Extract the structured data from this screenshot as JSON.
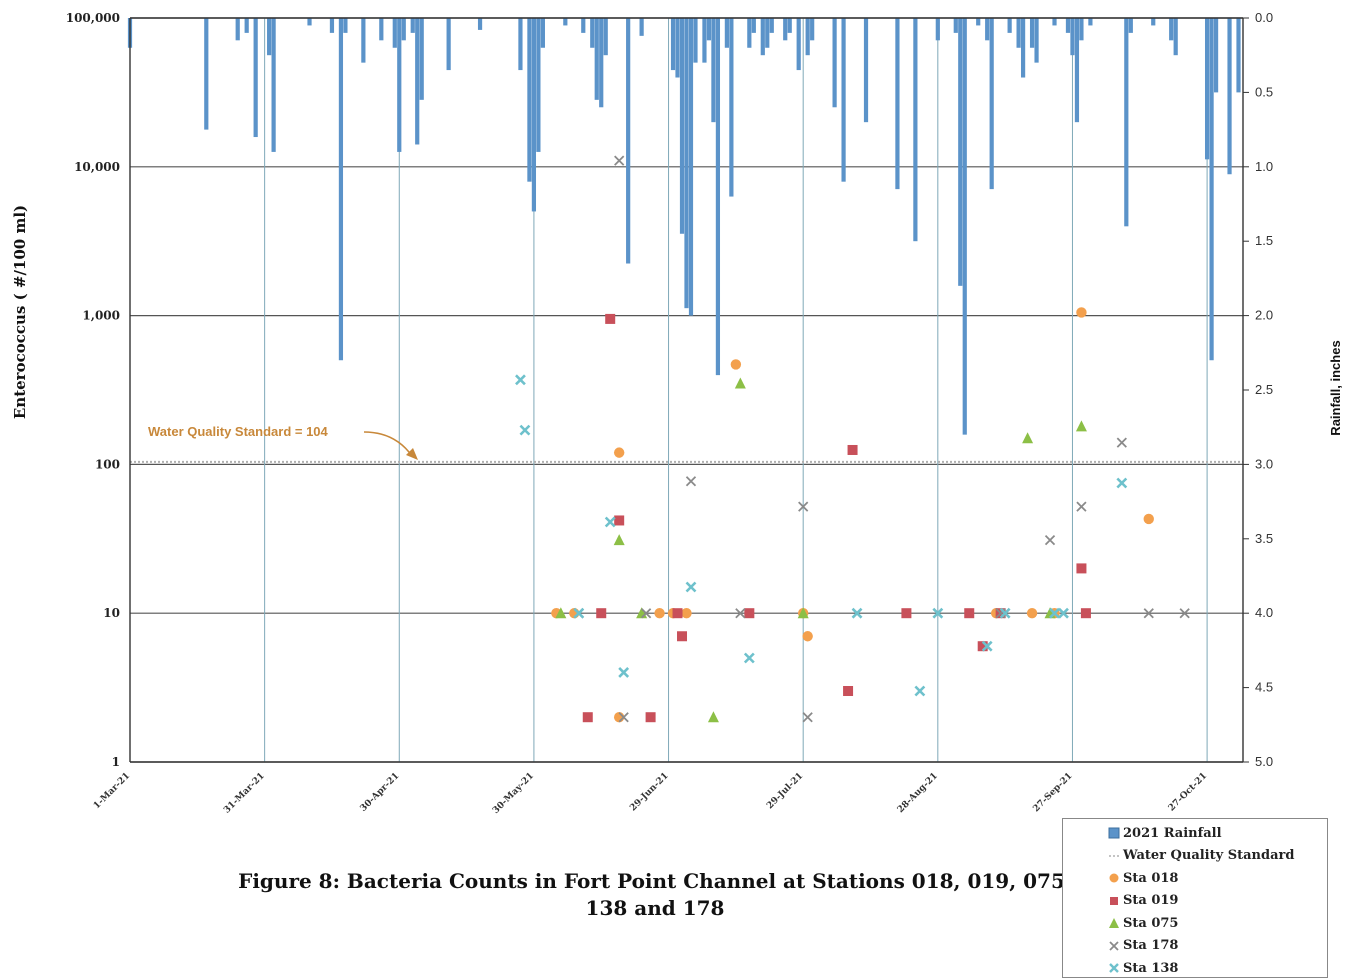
{
  "figure": {
    "caption_line1": "Figure 8:  Bacteria Counts in Fort Point Channel at Stations 018, 019, 075,",
    "caption_line2": "138 and 178"
  },
  "colors": {
    "rainfall": "#5b93c9",
    "wqs": "#b0b0b0",
    "sta018": "#f3a04d",
    "sta019": "#c8505a",
    "sta075": "#8cbf46",
    "sta178": "#8a8a8a",
    "sta138": "#6ec1cc",
    "annotation": "#c8883a"
  },
  "chart_data": {
    "type": "scatter",
    "title": "",
    "ylabel": "Enterococcus ( #/100 ml)",
    "y2label": "Rainfall, inches",
    "y_scale": "log",
    "ylim": [
      1,
      100000
    ],
    "y2lim": [
      5.0,
      0.0
    ],
    "y2_inverted": true,
    "xlim": [
      "2021-03-01",
      "2021-11-04"
    ],
    "y_ticks": [
      {
        "value": 1,
        "label": "1"
      },
      {
        "value": 10,
        "label": "10"
      },
      {
        "value": 100,
        "label": "100"
      },
      {
        "value": 1000,
        "label": "1,000"
      },
      {
        "value": 10000,
        "label": "10,000"
      },
      {
        "value": 100000,
        "label": "100,000"
      }
    ],
    "y2_ticks": [
      "0.0",
      "0.5",
      "1.0",
      "1.5",
      "2.0",
      "2.5",
      "3.0",
      "3.5",
      "4.0",
      "4.5",
      "5.0"
    ],
    "x_ticks": [
      {
        "date": "2021-03-01",
        "label": "1-Mar-21"
      },
      {
        "date": "2021-03-31",
        "label": "31-Mar-21"
      },
      {
        "date": "2021-04-30",
        "label": "30-Apr-21"
      },
      {
        "date": "2021-05-30",
        "label": "30-May-21"
      },
      {
        "date": "2021-06-29",
        "label": "29-Jun-21"
      },
      {
        "date": "2021-07-29",
        "label": "29-Jul-21"
      },
      {
        "date": "2021-08-28",
        "label": "28-Aug-21"
      },
      {
        "date": "2021-09-27",
        "label": "27-Sep-21"
      },
      {
        "date": "2021-10-27",
        "label": "27-Oct-21"
      }
    ],
    "grid": true,
    "legend_position": "bottom-right",
    "annotation": {
      "text": "Water Quality Standard = 104",
      "value": 104
    },
    "water_quality_standard": {
      "name": "Water Quality Standard",
      "value": 104
    },
    "rainfall": {
      "name": "2021 Rainfall",
      "unit": "inches",
      "points": [
        [
          "2021-03-01",
          0.2
        ],
        [
          "2021-03-18",
          0.75
        ],
        [
          "2021-03-25",
          0.15
        ],
        [
          "2021-03-27",
          0.1
        ],
        [
          "2021-03-29",
          0.8
        ],
        [
          "2021-04-01",
          0.25
        ],
        [
          "2021-04-02",
          0.9
        ],
        [
          "2021-04-10",
          0.05
        ],
        [
          "2021-04-15",
          0.1
        ],
        [
          "2021-04-17",
          2.3
        ],
        [
          "2021-04-18",
          0.1
        ],
        [
          "2021-04-22",
          0.3
        ],
        [
          "2021-04-26",
          0.15
        ],
        [
          "2021-04-29",
          0.2
        ],
        [
          "2021-04-30",
          0.9
        ],
        [
          "2021-05-01",
          0.15
        ],
        [
          "2021-05-03",
          0.1
        ],
        [
          "2021-05-04",
          0.85
        ],
        [
          "2021-05-05",
          0.55
        ],
        [
          "2021-05-11",
          0.35
        ],
        [
          "2021-05-18",
          0.08
        ],
        [
          "2021-05-27",
          0.35
        ],
        [
          "2021-05-29",
          1.1
        ],
        [
          "2021-05-30",
          1.3
        ],
        [
          "2021-05-31",
          0.9
        ],
        [
          "2021-06-01",
          0.2
        ],
        [
          "2021-06-06",
          0.05
        ],
        [
          "2021-06-10",
          0.1
        ],
        [
          "2021-06-12",
          0.2
        ],
        [
          "2021-06-13",
          0.55
        ],
        [
          "2021-06-14",
          0.6
        ],
        [
          "2021-06-15",
          0.25
        ],
        [
          "2021-06-20",
          1.65
        ],
        [
          "2021-06-23",
          0.12
        ],
        [
          "2021-06-30",
          0.35
        ],
        [
          "2021-07-01",
          0.4
        ],
        [
          "2021-07-02",
          1.45
        ],
        [
          "2021-07-03",
          1.95
        ],
        [
          "2021-07-04",
          2.0
        ],
        [
          "2021-07-05",
          0.3
        ],
        [
          "2021-07-07",
          0.3
        ],
        [
          "2021-07-08",
          0.15
        ],
        [
          "2021-07-09",
          0.7
        ],
        [
          "2021-07-10",
          2.4
        ],
        [
          "2021-07-12",
          0.2
        ],
        [
          "2021-07-13",
          1.2
        ],
        [
          "2021-07-17",
          0.2
        ],
        [
          "2021-07-18",
          0.1
        ],
        [
          "2021-07-20",
          0.25
        ],
        [
          "2021-07-21",
          0.2
        ],
        [
          "2021-07-22",
          0.1
        ],
        [
          "2021-07-25",
          0.15
        ],
        [
          "2021-07-26",
          0.1
        ],
        [
          "2021-07-28",
          0.35
        ],
        [
          "2021-07-30",
          0.25
        ],
        [
          "2021-07-31",
          0.15
        ],
        [
          "2021-08-05",
          0.6
        ],
        [
          "2021-08-07",
          1.1
        ],
        [
          "2021-08-12",
          0.7
        ],
        [
          "2021-08-19",
          1.15
        ],
        [
          "2021-08-23",
          1.5
        ],
        [
          "2021-08-28",
          0.15
        ],
        [
          "2021-09-01",
          0.1
        ],
        [
          "2021-09-02",
          1.8
        ],
        [
          "2021-09-03",
          2.8
        ],
        [
          "2021-09-06",
          0.05
        ],
        [
          "2021-09-08",
          0.15
        ],
        [
          "2021-09-09",
          1.15
        ],
        [
          "2021-09-13",
          0.1
        ],
        [
          "2021-09-15",
          0.2
        ],
        [
          "2021-09-16",
          0.4
        ],
        [
          "2021-09-18",
          0.2
        ],
        [
          "2021-09-19",
          0.3
        ],
        [
          "2021-09-23",
          0.05
        ],
        [
          "2021-09-26",
          0.1
        ],
        [
          "2021-09-27",
          0.25
        ],
        [
          "2021-09-28",
          0.7
        ],
        [
          "2021-09-29",
          0.15
        ],
        [
          "2021-10-01",
          0.05
        ],
        [
          "2021-10-09",
          1.4
        ],
        [
          "2021-10-10",
          0.1
        ],
        [
          "2021-10-15",
          0.05
        ],
        [
          "2021-10-19",
          0.15
        ],
        [
          "2021-10-20",
          0.25
        ],
        [
          "2021-10-27",
          0.95
        ],
        [
          "2021-10-28",
          2.3
        ],
        [
          "2021-10-29",
          0.5
        ],
        [
          "2021-11-01",
          1.05
        ],
        [
          "2021-11-03",
          0.5
        ]
      ]
    },
    "series": [
      {
        "name": "Sta 018",
        "marker": "circle",
        "points": [
          [
            "2021-06-04",
            10
          ],
          [
            "2021-06-08",
            10
          ],
          [
            "2021-06-18",
            2
          ],
          [
            "2021-06-18",
            120
          ],
          [
            "2021-06-27",
            10
          ],
          [
            "2021-06-30",
            10
          ],
          [
            "2021-07-03",
            10
          ],
          [
            "2021-07-14",
            470
          ],
          [
            "2021-07-29",
            10
          ],
          [
            "2021-07-30",
            7
          ],
          [
            "2021-09-10",
            10
          ],
          [
            "2021-09-18",
            10
          ],
          [
            "2021-09-23",
            10
          ],
          [
            "2021-09-29",
            1050
          ],
          [
            "2021-10-14",
            43
          ]
        ]
      },
      {
        "name": "Sta 019",
        "marker": "square",
        "points": [
          [
            "2021-06-11",
            2
          ],
          [
            "2021-06-14",
            10
          ],
          [
            "2021-06-16",
            950
          ],
          [
            "2021-06-18",
            42
          ],
          [
            "2021-06-25",
            2
          ],
          [
            "2021-07-01",
            10
          ],
          [
            "2021-07-02",
            7
          ],
          [
            "2021-07-17",
            10
          ],
          [
            "2021-08-08",
            3
          ],
          [
            "2021-08-09",
            125
          ],
          [
            "2021-08-21",
            10
          ],
          [
            "2021-09-04",
            10
          ],
          [
            "2021-09-07",
            6
          ],
          [
            "2021-09-11",
            10
          ],
          [
            "2021-09-29",
            20
          ],
          [
            "2021-09-30",
            10
          ]
        ]
      },
      {
        "name": "Sta 075",
        "marker": "triangle",
        "points": [
          [
            "2021-06-05",
            10
          ],
          [
            "2021-06-18",
            31
          ],
          [
            "2021-06-23",
            10
          ],
          [
            "2021-07-09",
            2
          ],
          [
            "2021-07-15",
            350
          ],
          [
            "2021-07-29",
            10
          ],
          [
            "2021-09-17",
            150
          ],
          [
            "2021-09-22",
            10
          ],
          [
            "2021-09-29",
            180
          ]
        ]
      },
      {
        "name": "Sta 178",
        "marker": "x",
        "points": [
          [
            "2021-06-09",
            10
          ],
          [
            "2021-06-18",
            11000
          ],
          [
            "2021-06-19",
            2
          ],
          [
            "2021-06-24",
            10
          ],
          [
            "2021-07-04",
            77
          ],
          [
            "2021-07-15",
            10
          ],
          [
            "2021-07-29",
            52
          ],
          [
            "2021-07-30",
            2
          ],
          [
            "2021-09-11",
            10
          ],
          [
            "2021-09-22",
            31
          ],
          [
            "2021-09-29",
            52
          ],
          [
            "2021-10-08",
            140
          ],
          [
            "2021-10-14",
            10
          ],
          [
            "2021-10-22",
            10
          ]
        ]
      },
      {
        "name": "Sta 138",
        "marker": "x",
        "points": [
          [
            "2021-05-27",
            370
          ],
          [
            "2021-05-28",
            170
          ],
          [
            "2021-06-09",
            10
          ],
          [
            "2021-06-16",
            41
          ],
          [
            "2021-06-19",
            4
          ],
          [
            "2021-07-04",
            15
          ],
          [
            "2021-07-17",
            5
          ],
          [
            "2021-08-10",
            10
          ],
          [
            "2021-08-24",
            3
          ],
          [
            "2021-08-28",
            10
          ],
          [
            "2021-09-08",
            6
          ],
          [
            "2021-09-12",
            10
          ],
          [
            "2021-09-23",
            10
          ],
          [
            "2021-09-25",
            10
          ],
          [
            "2021-10-08",
            75
          ]
        ]
      }
    ]
  }
}
